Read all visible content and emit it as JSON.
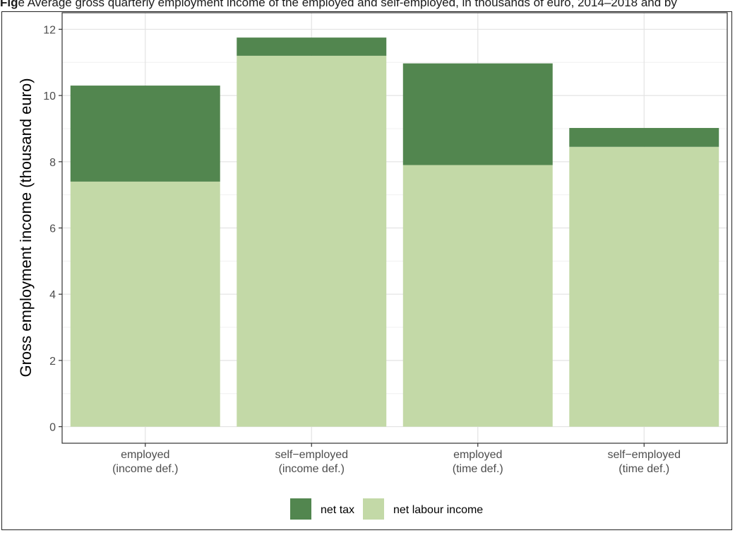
{
  "header": {
    "prefix": "Fig",
    "text": "e     Average gross quarterly employment income of the employed and self-employed, in thousands of euro, 2014–2018 and by"
  },
  "chart_data": {
    "type": "bar",
    "stacked": true,
    "categories": [
      [
        "employed",
        "(income def.)"
      ],
      [
        "self−employed",
        "(income def.)"
      ],
      [
        "employed",
        "(time def.)"
      ],
      [
        "self−employed",
        "(time def.)"
      ]
    ],
    "series": [
      {
        "name": "net labour income",
        "color": "#c3d9a7",
        "values": [
          7.4,
          11.2,
          7.9,
          8.45
        ]
      },
      {
        "name": "net tax",
        "color": "#52864f",
        "values": [
          2.9,
          0.55,
          3.07,
          0.57
        ]
      }
    ],
    "ylabel": "Gross employment income (thousand euro)",
    "xlabel": "",
    "ylim": [
      -0.5,
      12.5
    ],
    "yticks": [
      0,
      2,
      4,
      6,
      8,
      10,
      12
    ],
    "grid": true,
    "legend": {
      "position": "bottom",
      "entries": [
        {
          "label": "net tax",
          "color": "#52864f"
        },
        {
          "label": "net labour income",
          "color": "#c3d9a7"
        }
      ]
    }
  }
}
